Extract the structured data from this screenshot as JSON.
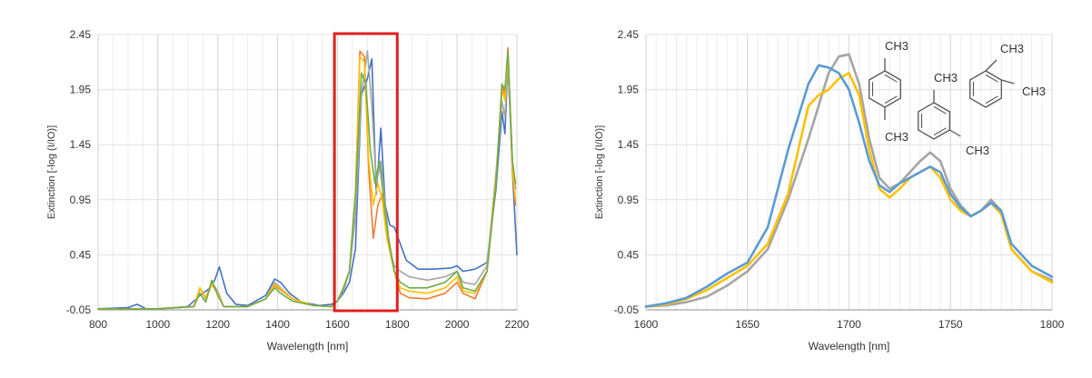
{
  "chart_data": [
    {
      "type": "line",
      "xlabel": "Wavelength [nm]",
      "ylabel": "Extinction [-log (I/IO)]",
      "xlim": [
        800,
        2200
      ],
      "ylim": [
        -0.05,
        2.45
      ],
      "x_ticks": [
        "800",
        "1000",
        "1200",
        "1400",
        "1600",
        "1800",
        "2000",
        "2200"
      ],
      "y_ticks": [
        "-0.05",
        "0.45",
        "0.95",
        "1.45",
        "1.95",
        "2.45"
      ],
      "grid": true,
      "highlight": {
        "x_range": [
          1590,
          1800
        ],
        "y_range": [
          -0.05,
          2.45
        ],
        "color": "#e02020"
      },
      "series": [
        {
          "color": "#4472c4",
          "x": [
            800,
            900,
            930,
            960,
            1000,
            1100,
            1140,
            1170,
            1190,
            1205,
            1230,
            1260,
            1300,
            1360,
            1390,
            1410,
            1440,
            1480,
            1540,
            1580,
            1600,
            1620,
            1640,
            1660,
            1680,
            1700,
            1715,
            1730,
            1745,
            1760,
            1775,
            1790,
            1810,
            1830,
            1870,
            1920,
            1980,
            2000,
            2020,
            2060,
            2100,
            2130,
            2150,
            2160,
            2170,
            2185,
            2200
          ],
          "y": [
            -0.04,
            -0.03,
            0.0,
            -0.04,
            -0.04,
            -0.02,
            0.08,
            0.14,
            0.22,
            0.34,
            0.1,
            0.0,
            -0.01,
            0.08,
            0.23,
            0.2,
            0.1,
            0.02,
            -0.01,
            0.0,
            0.03,
            0.1,
            0.2,
            0.5,
            1.9,
            2.05,
            2.23,
            1.0,
            1.6,
            0.9,
            0.72,
            0.7,
            0.55,
            0.4,
            0.32,
            0.32,
            0.33,
            0.35,
            0.3,
            0.32,
            0.38,
            1.05,
            1.75,
            1.55,
            2.2,
            1.2,
            0.45
          ]
        },
        {
          "color": "#ed7d31",
          "x": [
            800,
            1000,
            1120,
            1140,
            1160,
            1180,
            1200,
            1220,
            1300,
            1360,
            1390,
            1410,
            1450,
            1520,
            1580,
            1600,
            1620,
            1640,
            1660,
            1675,
            1690,
            1705,
            1720,
            1735,
            1750,
            1765,
            1790,
            1810,
            1840,
            1900,
            1960,
            2000,
            2020,
            2060,
            2100,
            2130,
            2150,
            2160,
            2170,
            2185,
            2195
          ],
          "y": [
            -0.04,
            -0.04,
            -0.02,
            0.15,
            0.05,
            0.18,
            0.1,
            -0.02,
            -0.02,
            0.05,
            0.17,
            0.13,
            0.05,
            -0.01,
            -0.02,
            0.03,
            0.15,
            0.3,
            1.0,
            2.3,
            2.25,
            1.2,
            0.6,
            0.9,
            1.0,
            0.7,
            0.3,
            0.1,
            0.06,
            0.05,
            0.1,
            0.2,
            0.1,
            0.05,
            0.3,
            1.1,
            2.0,
            1.9,
            2.33,
            1.2,
            0.9
          ]
        },
        {
          "color": "#a5a5a5",
          "x": [
            800,
            1000,
            1120,
            1140,
            1160,
            1180,
            1200,
            1220,
            1300,
            1360,
            1390,
            1410,
            1450,
            1520,
            1580,
            1600,
            1620,
            1640,
            1660,
            1680,
            1700,
            1715,
            1730,
            1745,
            1760,
            1775,
            1790,
            1810,
            1840,
            1900,
            1960,
            2000,
            2020,
            2060,
            2100,
            2130,
            2150,
            2160,
            2170,
            2185,
            2195
          ],
          "y": [
            -0.04,
            -0.04,
            -0.02,
            0.14,
            0.06,
            0.2,
            0.12,
            -0.02,
            -0.02,
            0.05,
            0.2,
            0.15,
            0.05,
            -0.01,
            -0.02,
            0.03,
            0.12,
            0.3,
            0.8,
            1.9,
            2.3,
            1.8,
            1.1,
            1.3,
            0.9,
            0.5,
            0.35,
            0.3,
            0.25,
            0.22,
            0.25,
            0.3,
            0.2,
            0.18,
            0.35,
            1.2,
            1.85,
            1.7,
            2.2,
            1.3,
            1.05
          ]
        },
        {
          "color": "#ffc000",
          "x": [
            800,
            1000,
            1120,
            1140,
            1160,
            1180,
            1200,
            1220,
            1300,
            1360,
            1390,
            1410,
            1450,
            1520,
            1580,
            1600,
            1620,
            1640,
            1660,
            1675,
            1690,
            1705,
            1720,
            1735,
            1750,
            1765,
            1790,
            1810,
            1840,
            1900,
            1960,
            2000,
            2020,
            2060,
            2100,
            2130,
            2150,
            2160,
            2170,
            2185,
            2195
          ],
          "y": [
            -0.04,
            -0.04,
            -0.02,
            0.15,
            0.06,
            0.19,
            0.1,
            -0.02,
            -0.02,
            0.05,
            0.18,
            0.14,
            0.05,
            -0.01,
            -0.02,
            0.03,
            0.15,
            0.3,
            1.0,
            2.25,
            2.2,
            1.3,
            0.9,
            1.1,
            0.95,
            0.6,
            0.3,
            0.15,
            0.12,
            0.1,
            0.15,
            0.25,
            0.12,
            0.1,
            0.3,
            1.15,
            1.95,
            1.85,
            2.28,
            1.25,
            0.95
          ]
        },
        {
          "color": "#70ad47",
          "x": [
            800,
            1000,
            1120,
            1140,
            1160,
            1180,
            1200,
            1220,
            1300,
            1360,
            1390,
            1410,
            1450,
            1520,
            1580,
            1600,
            1620,
            1640,
            1660,
            1680,
            1695,
            1710,
            1725,
            1740,
            1755,
            1770,
            1790,
            1810,
            1840,
            1900,
            1960,
            2000,
            2020,
            2060,
            2100,
            2130,
            2150,
            2160,
            2170,
            2185,
            2195
          ],
          "y": [
            -0.04,
            -0.04,
            -0.02,
            0.1,
            0.02,
            0.22,
            0.08,
            -0.02,
            -0.02,
            0.05,
            0.15,
            0.1,
            0.03,
            -0.01,
            -0.02,
            0.03,
            0.15,
            0.3,
            1.0,
            2.1,
            2.0,
            1.4,
            1.1,
            1.3,
            0.95,
            0.6,
            0.3,
            0.2,
            0.15,
            0.15,
            0.2,
            0.3,
            0.15,
            0.12,
            0.3,
            1.1,
            2.0,
            1.95,
            2.3,
            1.3,
            1.1
          ]
        }
      ]
    },
    {
      "type": "line",
      "xlabel": "Wavelength [nm]",
      "ylabel": "Extinction [-log (I/IO)]",
      "xlim": [
        1600,
        1800
      ],
      "ylim": [
        -0.05,
        2.45
      ],
      "x_ticks": [
        "1600",
        "1650",
        "1700",
        "1750",
        "1800"
      ],
      "y_ticks": [
        "-0.05",
        "0.45",
        "0.95",
        "1.45",
        "1.95",
        "2.45"
      ],
      "grid": true,
      "molecule_labels": [
        "CH3",
        "CH3",
        "CH3",
        "CH3",
        "CH3",
        "CH3"
      ],
      "series": [
        {
          "color": "#a5a5a5",
          "x": [
            1600,
            1610,
            1620,
            1630,
            1640,
            1650,
            1660,
            1670,
            1680,
            1685,
            1690,
            1695,
            1700,
            1705,
            1710,
            1715,
            1720,
            1725,
            1730,
            1735,
            1740,
            1745,
            1750,
            1755,
            1760,
            1765,
            1770,
            1775,
            1780,
            1790,
            1800
          ],
          "y": [
            -0.02,
            -0.01,
            0.02,
            0.07,
            0.17,
            0.3,
            0.5,
            0.95,
            1.5,
            1.8,
            2.1,
            2.25,
            2.27,
            2.0,
            1.5,
            1.15,
            1.05,
            1.1,
            1.2,
            1.3,
            1.38,
            1.3,
            1.05,
            0.9,
            0.8,
            0.85,
            0.95,
            0.85,
            0.5,
            0.3,
            0.22
          ]
        },
        {
          "color": "#ffc000",
          "x": [
            1600,
            1610,
            1620,
            1630,
            1640,
            1650,
            1660,
            1670,
            1675,
            1680,
            1685,
            1690,
            1695,
            1700,
            1705,
            1710,
            1715,
            1720,
            1725,
            1730,
            1735,
            1740,
            1745,
            1750,
            1755,
            1760,
            1765,
            1770,
            1775,
            1780,
            1790,
            1800
          ],
          "y": [
            -0.02,
            0.0,
            0.05,
            0.13,
            0.24,
            0.35,
            0.55,
            1.0,
            1.4,
            1.8,
            1.9,
            1.95,
            2.05,
            2.1,
            1.9,
            1.4,
            1.05,
            0.97,
            1.05,
            1.15,
            1.2,
            1.25,
            1.15,
            0.95,
            0.85,
            0.8,
            0.85,
            0.92,
            0.82,
            0.5,
            0.3,
            0.2
          ]
        },
        {
          "color": "#5b9bd5",
          "x": [
            1600,
            1610,
            1620,
            1630,
            1640,
            1650,
            1660,
            1670,
            1680,
            1685,
            1690,
            1695,
            1700,
            1705,
            1710,
            1715,
            1720,
            1725,
            1730,
            1735,
            1740,
            1745,
            1750,
            1755,
            1760,
            1765,
            1770,
            1775,
            1780,
            1790,
            1800
          ],
          "y": [
            -0.02,
            0.01,
            0.06,
            0.16,
            0.28,
            0.38,
            0.7,
            1.4,
            2.0,
            2.17,
            2.15,
            2.1,
            1.95,
            1.65,
            1.3,
            1.08,
            1.02,
            1.1,
            1.15,
            1.2,
            1.25,
            1.2,
            1.0,
            0.88,
            0.8,
            0.85,
            0.92,
            0.85,
            0.55,
            0.35,
            0.25
          ]
        }
      ]
    }
  ]
}
